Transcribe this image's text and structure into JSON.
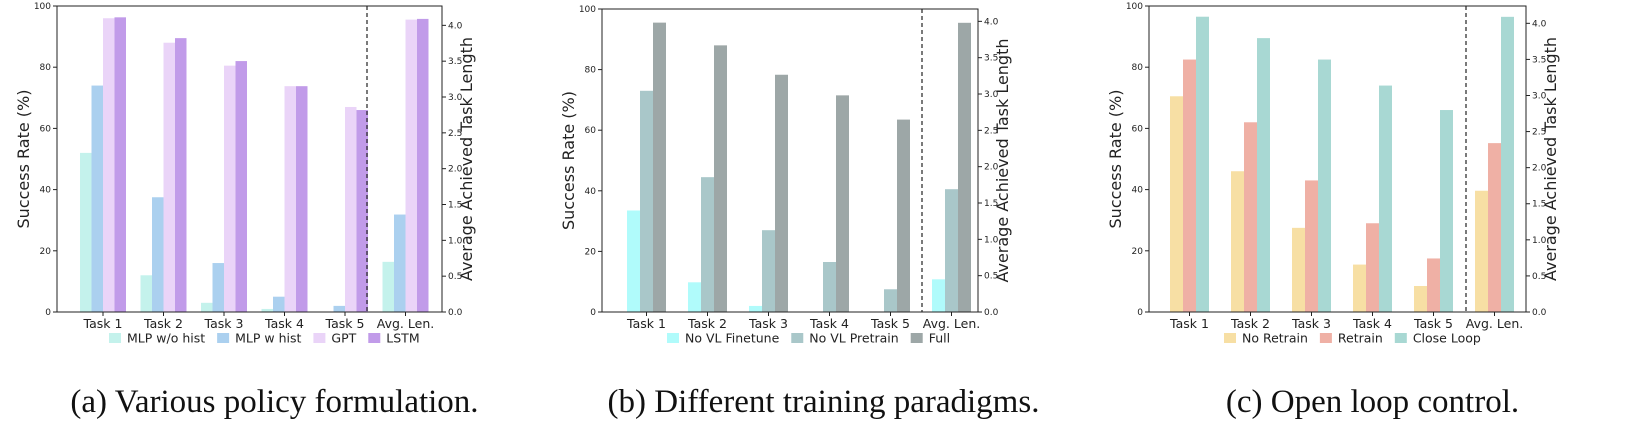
{
  "panels": [
    {
      "caption": "(a) Various policy formulation.",
      "chart_data": {
        "type": "bar",
        "categories": [
          "Task 1",
          "Task 2",
          "Task 3",
          "Task 4",
          "Task 5",
          "Avg. Len."
        ],
        "ylabel": "Success Rate (%)",
        "y2label": "Average Achieved Task Length",
        "ylim": [
          0,
          100
        ],
        "y2lim": [
          0,
          4.27
        ],
        "yticks": [
          0,
          20,
          40,
          60,
          80,
          100
        ],
        "y2ticks": [
          0.0,
          0.5,
          1.0,
          1.5,
          2.0,
          2.5,
          3.0,
          3.5,
          4.0
        ],
        "legend_position": "bottom",
        "series": [
          {
            "name": "MLP w/o hist",
            "color": "#c4f2ec",
            "values": [
              52,
              12,
              3,
              1,
              0,
              0.7
            ]
          },
          {
            "name": "MLP w hist",
            "color": "#abd0ef",
            "values": [
              74,
              37.5,
              16,
              5,
              2,
              1.36
            ]
          },
          {
            "name": "GPT",
            "color": "#ead4f8",
            "values": [
              96,
              88,
              80.5,
              73.8,
              67,
              4.08
            ]
          },
          {
            "name": "LSTM",
            "color": "#c19be9",
            "values": [
              96.3,
              89.5,
              82,
              73.8,
              66,
              4.09
            ]
          }
        ]
      }
    },
    {
      "caption": "(b) Different training paradigms.",
      "chart_data": {
        "type": "bar",
        "categories": [
          "Task 1",
          "Task 2",
          "Task 3",
          "Task 4",
          "Task 5",
          "Avg. Len."
        ],
        "ylabel": "Success Rate (%)",
        "y2label": "Average Achieved Task Length",
        "ylim": [
          0,
          100
        ],
        "y2lim": [
          0,
          4.17
        ],
        "yticks": [
          0,
          20,
          40,
          60,
          80,
          100
        ],
        "y2ticks": [
          0.0,
          0.5,
          1.0,
          1.5,
          2.0,
          2.5,
          3.0,
          3.5,
          4.0
        ],
        "legend_position": "bottom",
        "series": [
          {
            "name": "No VL Finetune",
            "color": "#b0fbfb",
            "values": [
              33.5,
              9.8,
              2,
              0,
              0,
              0.45
            ]
          },
          {
            "name": "No VL Pretrain",
            "color": "#a9c7c9",
            "values": [
              73,
              44.5,
              27,
              16.5,
              7.5,
              1.69
            ]
          },
          {
            "name": "Full",
            "color": "#9da7a7",
            "values": [
              95.5,
              88,
              78.3,
              71.5,
              63.5,
              3.98
            ]
          }
        ]
      }
    },
    {
      "caption": "(c) Open loop control.",
      "chart_data": {
        "type": "bar",
        "categories": [
          "Task 1",
          "Task 2",
          "Task 3",
          "Task 4",
          "Task 5",
          "Avg. Len."
        ],
        "ylabel": "Success Rate (%)",
        "y2label": "Average Achieved Task Length",
        "ylim": [
          0,
          100
        ],
        "y2lim": [
          0,
          4.24
        ],
        "yticks": [
          0,
          20,
          40,
          60,
          80,
          100
        ],
        "y2ticks": [
          0.0,
          0.5,
          1.0,
          1.5,
          2.0,
          2.5,
          3.0,
          3.5,
          4.0
        ],
        "legend_position": "bottom",
        "series": [
          {
            "name": "No Retrain",
            "color": "#f7dfa4",
            "values": [
              70.5,
              46,
              27.5,
              15.5,
              8.5,
              1.68
            ]
          },
          {
            "name": "Retrain",
            "color": "#efb0a5",
            "values": [
              82.5,
              62,
              43,
              29,
              17.5,
              2.34
            ]
          },
          {
            "name": "Close Loop",
            "color": "#a8d8d3",
            "values": [
              96.5,
              89.5,
              82.5,
              74,
              66,
              4.09
            ]
          }
        ]
      }
    }
  ]
}
